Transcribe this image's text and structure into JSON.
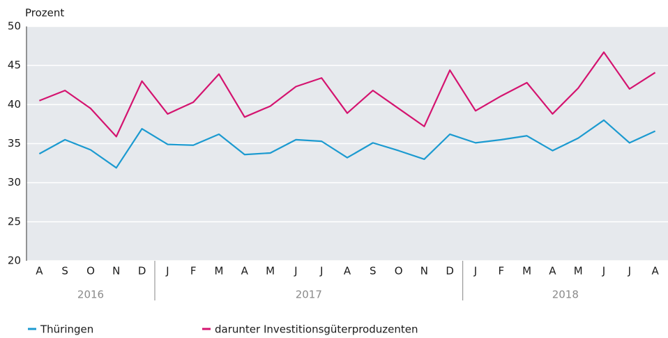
{
  "chart_data": {
    "type": "line",
    "y_label": "Prozent",
    "categories": [
      "A",
      "S",
      "O",
      "N",
      "D",
      "J",
      "F",
      "M",
      "A",
      "M",
      "J",
      "J",
      "A",
      "S",
      "O",
      "N",
      "D",
      "J",
      "F",
      "M",
      "A",
      "M",
      "J",
      "J",
      "A"
    ],
    "years": [
      "2016",
      "2017",
      "2018"
    ],
    "series": [
      {
        "name": "Thüringen",
        "color": "#1b9ad0",
        "values": [
          33.7,
          35.5,
          34.2,
          31.9,
          36.9,
          34.9,
          34.8,
          36.2,
          33.6,
          33.8,
          35.5,
          35.3,
          33.2,
          35.1,
          34.1,
          33.0,
          36.2,
          35.1,
          35.5,
          36.0,
          34.1,
          35.7,
          38.0,
          35.1,
          36.6
        ]
      },
      {
        "name": "darunter Investitionsgüterproduzenten",
        "color": "#d4136f",
        "values": [
          40.5,
          41.8,
          39.5,
          35.9,
          43.0,
          38.8,
          40.3,
          43.9,
          38.4,
          39.8,
          42.3,
          43.4,
          38.9,
          41.8,
          39.5,
          37.2,
          44.4,
          39.2,
          41.1,
          42.8,
          38.8,
          42.1,
          46.7,
          42.0,
          44.1
        ]
      }
    ],
    "ylim": [
      20,
      50
    ],
    "yticks": [
      20,
      25,
      30,
      35,
      40,
      45,
      50
    ],
    "grid": true
  }
}
